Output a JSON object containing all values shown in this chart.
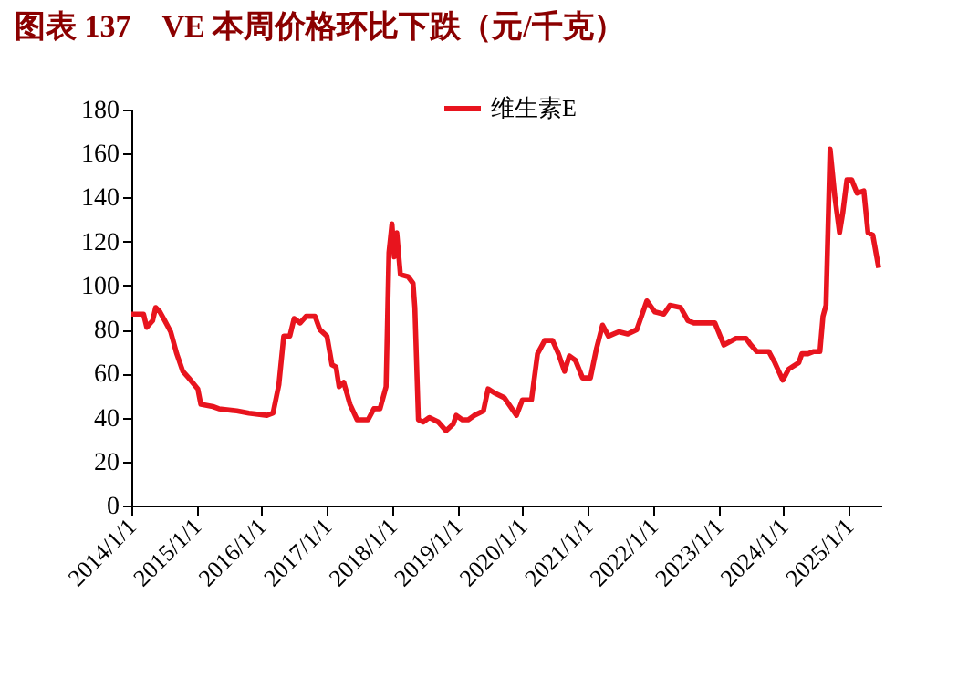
{
  "chart_data": {
    "type": "line",
    "title": "图表 137　VE 本周价格环比下跌（元/千克）",
    "x": [
      "2014-01-01",
      "2014-03-10",
      "2014-03-28",
      "2014-04-30",
      "2014-05-17",
      "2014-06-10",
      "2014-07-07",
      "2014-08-09",
      "2014-09-12",
      "2014-10-16",
      "2014-11-18",
      "2015-01-08",
      "2015-01-25",
      "2015-04-02",
      "2015-05-06",
      "2015-08-15",
      "2015-10-21",
      "2016-01-30",
      "2016-03-04",
      "2016-04-06",
      "2016-05-03",
      "2016-06-06",
      "2016-06-30",
      "2016-08-03",
      "2016-09-05",
      "2016-10-25",
      "2016-11-21",
      "2016-12-31",
      "2017-01-28",
      "2017-02-20",
      "2017-03-09",
      "2017-04-04",
      "2017-05-09",
      "2017-06-18",
      "2017-08-18",
      "2017-09-20",
      "2017-10-24",
      "2017-11-27",
      "2017-12-13",
      "2017-12-30",
      "2018-01-12",
      "2018-01-26",
      "2018-02-15",
      "2018-03-31",
      "2018-04-27",
      "2018-05-07",
      "2018-05-27",
      "2018-06-23",
      "2018-07-27",
      "2018-09-15",
      "2018-10-29",
      "2018-12-08",
      "2018-12-25",
      "2019-01-28",
      "2019-03-02",
      "2019-04-05",
      "2019-05-26",
      "2019-06-21",
      "2019-07-31",
      "2019-09-20",
      "2019-11-27",
      "2019-12-30",
      "2020-02-19",
      "2020-03-24",
      "2020-05-03",
      "2020-06-16",
      "2020-07-19",
      "2020-08-22",
      "2020-09-18",
      "2020-10-22",
      "2020-12-01",
      "2021-01-14",
      "2021-02-16",
      "2021-03-23",
      "2021-04-25",
      "2021-06-22",
      "2021-08-11",
      "2021-10-01",
      "2021-11-26",
      "2022-01-10",
      "2022-03-01",
      "2022-04-04",
      "2022-06-03",
      "2022-07-14",
      "2022-08-16",
      "2022-12-12",
      "2023-01-31",
      "2023-04-09",
      "2023-06-04",
      "2023-07-01",
      "2023-08-03",
      "2023-10-10",
      "2023-11-12",
      "2023-12-27",
      "2024-01-29",
      "2024-03-26",
      "2024-04-12",
      "2024-05-16",
      "2024-06-18",
      "2024-07-22",
      "2024-08-08",
      "2024-08-25",
      "2024-09-17",
      "2024-10-14",
      "2024-11-09",
      "2024-11-27",
      "2024-12-20",
      "2025-01-16",
      "2025-02-15",
      "2025-03-25",
      "2025-04-17",
      "2025-05-14",
      "2025-06-16"
    ],
    "series": [
      {
        "name": "维生素E",
        "color": "#e8141e",
        "values": [
          87,
          87,
          81,
          84,
          90,
          88,
          84,
          79,
          69,
          61,
          58,
          53,
          46,
          45,
          44,
          43,
          42,
          41,
          42,
          55,
          77,
          77,
          85,
          83,
          86,
          86,
          80,
          77,
          64,
          63,
          54,
          56,
          46,
          39,
          39,
          44,
          44,
          54,
          115,
          128,
          113,
          124,
          105,
          104,
          101,
          90,
          39,
          38,
          40,
          38,
          34,
          37,
          41,
          39,
          39,
          41,
          43,
          53,
          51,
          49,
          41,
          48,
          48,
          69,
          75,
          75,
          69,
          61,
          68,
          66,
          58,
          58,
          71,
          82,
          77,
          79,
          78,
          80,
          93,
          88,
          87,
          91,
          90,
          84,
          83,
          83,
          73,
          76,
          76,
          73,
          70,
          70,
          65,
          57,
          62,
          65,
          69,
          69,
          70,
          70,
          86,
          91,
          162,
          140,
          124,
          133,
          148,
          148,
          142,
          143,
          124,
          123,
          108
        ]
      }
    ],
    "xlim": [
      "2014-01-01",
      "2025-07-01"
    ],
    "xticks": [
      {
        "value": "2014-01-01",
        "label": "2014/1/1"
      },
      {
        "value": "2015-01-01",
        "label": "2015/1/1"
      },
      {
        "value": "2016-01-01",
        "label": "2016/1/1"
      },
      {
        "value": "2017-01-01",
        "label": "2017/1/1"
      },
      {
        "value": "2018-01-01",
        "label": "2018/1/1"
      },
      {
        "value": "2019-01-01",
        "label": "2019/1/1"
      },
      {
        "value": "2020-01-01",
        "label": "2020/1/1"
      },
      {
        "value": "2021-01-01",
        "label": "2021/1/1"
      },
      {
        "value": "2022-01-01",
        "label": "2022/1/1"
      },
      {
        "value": "2023-01-01",
        "label": "2023/1/1"
      },
      {
        "value": "2024-01-01",
        "label": "2024/1/1"
      },
      {
        "value": "2025-01-01",
        "label": "2025/1/1"
      }
    ],
    "ylim": [
      0,
      180
    ],
    "yticks": [
      0,
      20,
      40,
      60,
      80,
      100,
      120,
      140,
      160,
      180
    ],
    "grid": false,
    "legend": "top",
    "marker": "none",
    "line_style": "solid"
  }
}
